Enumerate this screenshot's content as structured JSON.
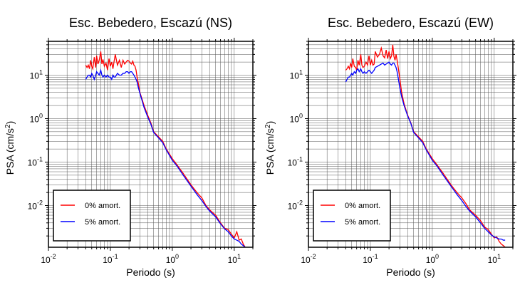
{
  "chart_data": [
    {
      "type": "line",
      "title": "Esc. Bebedero, Escazú (NS)",
      "xlabel": "Periodo (s)",
      "ylabel_main": "PSA (cm/s",
      "ylabel_sup": "2",
      "ylabel_end": ")",
      "xscale": "log",
      "yscale": "log",
      "xlim": [
        0.01,
        20
      ],
      "ylim": [
        0.0011,
        60
      ],
      "grid": true,
      "legend_position": "bottom-left",
      "x_ticks": [
        {
          "base": "10",
          "exp": "-2"
        },
        {
          "base": "10",
          "exp": "-1"
        },
        {
          "base": "10",
          "exp": "0"
        },
        {
          "base": "10",
          "exp": "1"
        }
      ],
      "y_ticks": [
        {
          "base": "10",
          "exp": "-2"
        },
        {
          "base": "10",
          "exp": "-1"
        },
        {
          "base": "10",
          "exp": "0"
        },
        {
          "base": "10",
          "exp": "1"
        }
      ],
      "series": [
        {
          "name": "0% amort.",
          "color": "#ff0000",
          "x": [
            0.04,
            0.042,
            0.044,
            0.046,
            0.048,
            0.05,
            0.052,
            0.055,
            0.058,
            0.06,
            0.063,
            0.066,
            0.07,
            0.073,
            0.076,
            0.08,
            0.085,
            0.09,
            0.095,
            0.1,
            0.105,
            0.11,
            0.115,
            0.12,
            0.13,
            0.14,
            0.15,
            0.16,
            0.17,
            0.18,
            0.19,
            0.2,
            0.21,
            0.22,
            0.23,
            0.24,
            0.25,
            0.26,
            0.27,
            0.28,
            0.3,
            0.32,
            0.35,
            0.4,
            0.45,
            0.5,
            0.6,
            0.7,
            0.8,
            1.0,
            1.2,
            1.5,
            2.0,
            2.5,
            3.0,
            3.5,
            4.0,
            5.0,
            6.0,
            7.0,
            8.0,
            9.0,
            10.0,
            11.0,
            12.0,
            13.0,
            14.0,
            15.0
          ],
          "y": [
            17,
            15,
            17,
            14,
            22,
            16,
            14,
            26,
            15,
            28,
            18,
            22,
            35,
            18,
            23,
            16,
            19,
            13,
            24,
            16,
            20,
            14,
            21,
            30,
            17,
            22,
            15,
            22,
            18,
            20,
            22,
            21,
            19,
            18,
            21,
            17,
            16,
            13,
            9,
            7,
            4,
            3,
            2,
            1.2,
            0.8,
            0.5,
            0.38,
            0.3,
            0.2,
            0.12,
            0.085,
            0.055,
            0.03,
            0.02,
            0.015,
            0.01,
            0.008,
            0.006,
            0.004,
            0.003,
            0.0028,
            0.0022,
            0.0018,
            0.0025,
            0.0016,
            0.0017,
            0.0013,
            0.0011
          ]
        },
        {
          "name": "5% amort.",
          "color": "#0000ff",
          "x": [
            0.04,
            0.042,
            0.044,
            0.046,
            0.048,
            0.05,
            0.052,
            0.055,
            0.058,
            0.06,
            0.063,
            0.066,
            0.07,
            0.073,
            0.076,
            0.08,
            0.085,
            0.09,
            0.095,
            0.1,
            0.105,
            0.11,
            0.115,
            0.12,
            0.13,
            0.14,
            0.15,
            0.16,
            0.17,
            0.18,
            0.19,
            0.2,
            0.21,
            0.22,
            0.23,
            0.24,
            0.25,
            0.26,
            0.27,
            0.28,
            0.3,
            0.32,
            0.35,
            0.4,
            0.45,
            0.5,
            0.6,
            0.7,
            0.8,
            1.0,
            1.2,
            1.5,
            2.0,
            2.5,
            3.0,
            3.5,
            4.0,
            5.0,
            6.0,
            7.0,
            8.0,
            9.0,
            10.0,
            11.0,
            12.0,
            13.0,
            14.0,
            15.0
          ],
          "y": [
            8,
            9,
            10,
            10,
            9,
            11,
            10,
            8,
            10,
            12,
            11,
            10,
            13,
            10,
            9,
            10,
            9,
            10,
            9,
            9,
            8,
            10,
            9,
            9,
            11,
            10,
            10,
            11,
            11,
            12,
            12,
            11,
            12,
            12,
            11,
            10,
            9,
            8,
            7,
            5.5,
            3.8,
            2.8,
            1.8,
            1.1,
            0.75,
            0.48,
            0.36,
            0.28,
            0.19,
            0.11,
            0.08,
            0.05,
            0.028,
            0.018,
            0.013,
            0.0095,
            0.0075,
            0.0055,
            0.0038,
            0.0029,
            0.0025,
            0.002,
            0.0017,
            0.0016,
            0.0015,
            0.0013,
            0.0012,
            0.0011
          ]
        }
      ]
    },
    {
      "type": "line",
      "title": "Esc. Bebedero, Escazú (EW)",
      "xlabel": "Periodo (s)",
      "ylabel_main": "PSA (cm/s",
      "ylabel_sup": "2",
      "ylabel_end": ")",
      "xscale": "log",
      "yscale": "log",
      "xlim": [
        0.01,
        20
      ],
      "ylim": [
        0.0011,
        60
      ],
      "grid": true,
      "legend_position": "bottom-left",
      "x_ticks": [
        {
          "base": "10",
          "exp": "-2"
        },
        {
          "base": "10",
          "exp": "-1"
        },
        {
          "base": "10",
          "exp": "0"
        },
        {
          "base": "10",
          "exp": "1"
        }
      ],
      "y_ticks": [
        {
          "base": "10",
          "exp": "-2"
        },
        {
          "base": "10",
          "exp": "-1"
        },
        {
          "base": "10",
          "exp": "0"
        },
        {
          "base": "10",
          "exp": "1"
        }
      ],
      "series": [
        {
          "name": "0% amort.",
          "color": "#ff0000",
          "x": [
            0.04,
            0.042,
            0.044,
            0.046,
            0.048,
            0.05,
            0.052,
            0.055,
            0.058,
            0.06,
            0.063,
            0.066,
            0.07,
            0.073,
            0.076,
            0.08,
            0.085,
            0.09,
            0.095,
            0.1,
            0.105,
            0.11,
            0.115,
            0.12,
            0.13,
            0.14,
            0.15,
            0.16,
            0.17,
            0.18,
            0.19,
            0.2,
            0.21,
            0.22,
            0.23,
            0.24,
            0.25,
            0.26,
            0.27,
            0.28,
            0.3,
            0.32,
            0.35,
            0.4,
            0.45,
            0.5,
            0.6,
            0.7,
            0.8,
            1.0,
            1.2,
            1.5,
            2.0,
            2.5,
            3.0,
            3.5,
            4.0,
            5.0,
            6.0,
            7.0,
            8.0,
            9.0,
            10.0,
            11.0,
            12.0,
            13.0,
            14.0,
            15.0
          ],
          "y": [
            13,
            14,
            16,
            14,
            19,
            15,
            24,
            16,
            15,
            13,
            22,
            17,
            30,
            17,
            15,
            16,
            20,
            17,
            28,
            17,
            22,
            17,
            18,
            35,
            26,
            30,
            42,
            28,
            25,
            38,
            24,
            35,
            24,
            28,
            50,
            27,
            22,
            30,
            22,
            16,
            8,
            4,
            2.2,
            1.2,
            0.8,
            0.5,
            0.38,
            0.3,
            0.2,
            0.12,
            0.085,
            0.055,
            0.03,
            0.02,
            0.015,
            0.011,
            0.008,
            0.006,
            0.0045,
            0.0032,
            0.0028,
            0.0022,
            0.0018,
            0.0019,
            0.0015,
            0.0013,
            0.0012,
            0.0011
          ]
        },
        {
          "name": "5% amort.",
          "color": "#0000ff",
          "x": [
            0.04,
            0.042,
            0.044,
            0.046,
            0.048,
            0.05,
            0.052,
            0.055,
            0.058,
            0.06,
            0.063,
            0.066,
            0.07,
            0.073,
            0.076,
            0.08,
            0.085,
            0.09,
            0.095,
            0.1,
            0.105,
            0.11,
            0.115,
            0.12,
            0.13,
            0.14,
            0.15,
            0.16,
            0.17,
            0.18,
            0.19,
            0.2,
            0.21,
            0.22,
            0.23,
            0.24,
            0.25,
            0.26,
            0.27,
            0.28,
            0.3,
            0.32,
            0.35,
            0.4,
            0.45,
            0.5,
            0.6,
            0.7,
            0.8,
            1.0,
            1.2,
            1.5,
            2.0,
            2.5,
            3.0,
            3.5,
            4.0,
            5.0,
            6.0,
            7.0,
            8.0,
            9.0,
            10.0,
            11.0,
            12.0,
            13.0,
            14.0,
            15.0
          ],
          "y": [
            7,
            8,
            9,
            9,
            10,
            11,
            10,
            12,
            11,
            13,
            14,
            12,
            14,
            12,
            11,
            12,
            11,
            12,
            13,
            12,
            11,
            12,
            13,
            15,
            16,
            17,
            18,
            19,
            17,
            18,
            19,
            20,
            18,
            17,
            19,
            19,
            17,
            15,
            12,
            9,
            5,
            3.2,
            2,
            1.15,
            0.78,
            0.48,
            0.36,
            0.28,
            0.19,
            0.11,
            0.08,
            0.05,
            0.028,
            0.018,
            0.013,
            0.0095,
            0.0075,
            0.0055,
            0.004,
            0.003,
            0.0025,
            0.0021,
            0.0019,
            0.0018,
            0.0017,
            0.0017,
            0.0016,
            0.0016
          ]
        }
      ]
    }
  ]
}
